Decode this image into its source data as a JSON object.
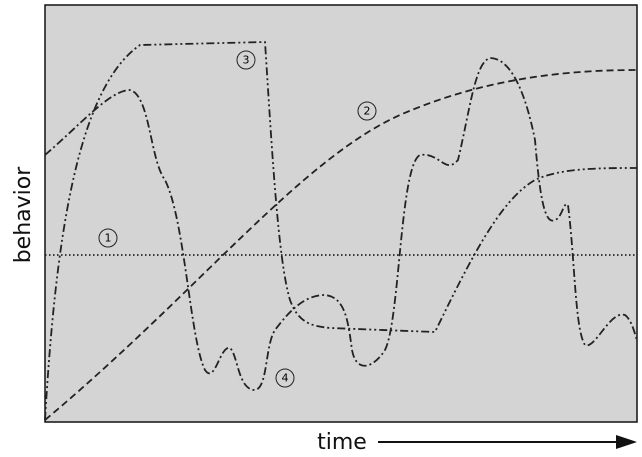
{
  "axes": {
    "y_label": "behavior",
    "x_label": "time"
  },
  "curves": [
    {
      "label": "1"
    },
    {
      "label": "2"
    },
    {
      "label": "3"
    },
    {
      "label": "4"
    }
  ]
}
